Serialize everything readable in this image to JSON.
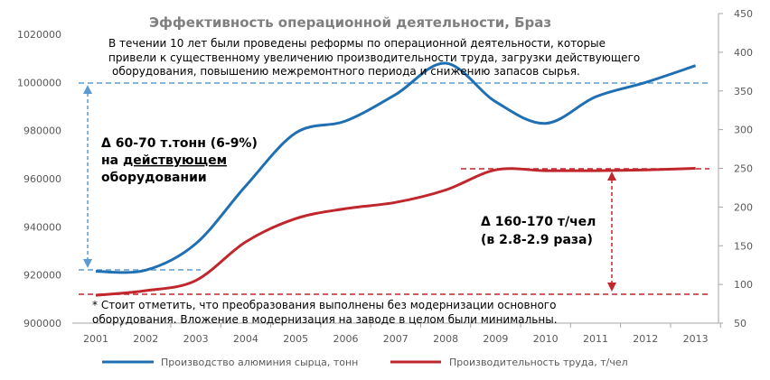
{
  "chart_data": {
    "type": "line",
    "title": "Эффективность операционной деятельности, Браз",
    "categories": [
      "2001",
      "2002",
      "2003",
      "2004",
      "2005",
      "2006",
      "2007",
      "2008",
      "2009",
      "2010",
      "2011",
      "2012",
      "2013"
    ],
    "series": [
      {
        "name": "Производство алюминия сырца, тонн",
        "axis": "left",
        "color": "#1f6fb2",
        "values": [
          921500,
          922000,
          933000,
          957000,
          979000,
          984000,
          995000,
          1008000,
          992000,
          983000,
          994000,
          1000000,
          1007000
        ]
      },
      {
        "name": "Производительность труда, т/чел",
        "axis": "right",
        "color": "#c0272d",
        "values": [
          86,
          92,
          105,
          155,
          185,
          198,
          206,
          222,
          248,
          247,
          247,
          248,
          250
        ]
      }
    ],
    "left_axis": {
      "min": 900000,
      "max": 1020000,
      "ticks": [
        900000,
        920000,
        940000,
        960000,
        980000,
        1000000,
        1020000
      ]
    },
    "right_axis": {
      "min": 50,
      "max": 450,
      "ticks": [
        50,
        100,
        150,
        200,
        250,
        300,
        350,
        400,
        450
      ]
    },
    "legend_position": "bottom",
    "grid": false,
    "annotations": {
      "note_top": [
        "В течении 10 лет были проведены реформы по операционной деятельности, которые",
        "привели к существенному увеличению производительности труда, загрузки действующего",
        "оборудования, повышению межремонтного периода и снижению запасов сырья."
      ],
      "left_arrow_text": [
        "Δ 60-70 т.тонн (6-9%)",
        "на ",
        "действующем",
        "оборудовании"
      ],
      "right_arrow_text": [
        "Δ 160-170 т/чел",
        "(в 2.8-2.9 раза)"
      ],
      "note_bottom": [
        "* Стоит отметить, что преобразования выполнены без модернизации основного",
        "оборудования. Вложение в модернизация на заводе в целом были минимальны."
      ]
    }
  }
}
